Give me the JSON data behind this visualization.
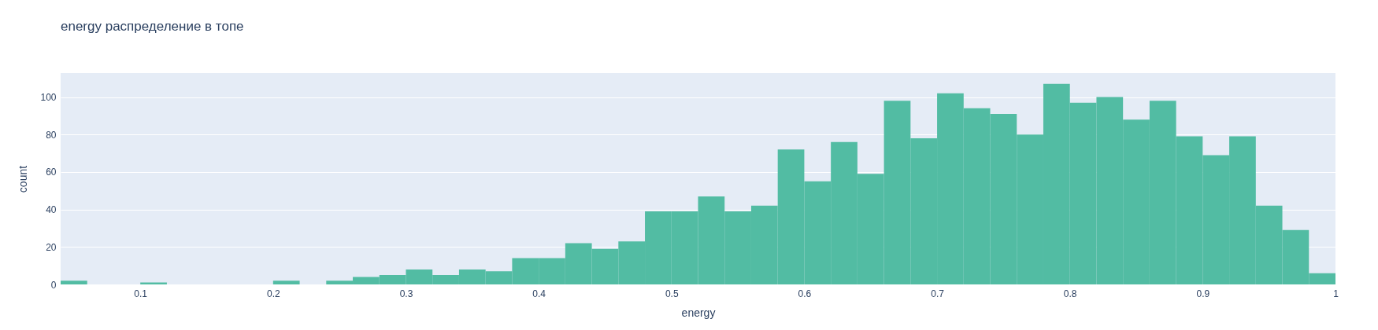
{
  "chart_data": {
    "type": "histogram",
    "title": "energy распределение в топе",
    "xlabel": "energy",
    "ylabel": "count",
    "color": "#52bca3",
    "bins": [
      0.04,
      0.06,
      0.08,
      0.1,
      0.12,
      0.14,
      0.16,
      0.18,
      0.2,
      0.22,
      0.24,
      0.26,
      0.28,
      0.3,
      0.32,
      0.34,
      0.36,
      0.38,
      0.4,
      0.42,
      0.44,
      0.46,
      0.48,
      0.5,
      0.52,
      0.54,
      0.56,
      0.58,
      0.6,
      0.62,
      0.64,
      0.66,
      0.68,
      0.7,
      0.72,
      0.74,
      0.76,
      0.78,
      0.8,
      0.82,
      0.84,
      0.86,
      0.88,
      0.9,
      0.92,
      0.94,
      0.96,
      0.98,
      1
    ],
    "values": [
      2,
      0,
      0,
      1,
      0,
      0,
      0,
      0,
      2,
      0,
      2,
      4,
      5,
      8,
      5,
      8,
      7,
      14,
      14,
      22,
      19,
      23,
      39,
      39,
      47,
      39,
      42,
      72,
      55,
      76,
      59,
      98,
      78,
      102,
      94,
      91,
      80,
      107,
      97,
      100,
      88,
      98,
      79,
      69,
      79,
      42,
      29,
      6
    ],
    "xlim": [
      0.04,
      1
    ],
    "xticks": [
      0.1,
      0.2,
      0.3,
      0.4,
      0.5,
      0.6,
      0.7,
      0.8,
      0.9,
      1
    ],
    "ylim": [
      0,
      112.8
    ],
    "yticks": [
      0,
      20,
      40,
      60,
      80,
      100
    ],
    "grid": "y"
  }
}
